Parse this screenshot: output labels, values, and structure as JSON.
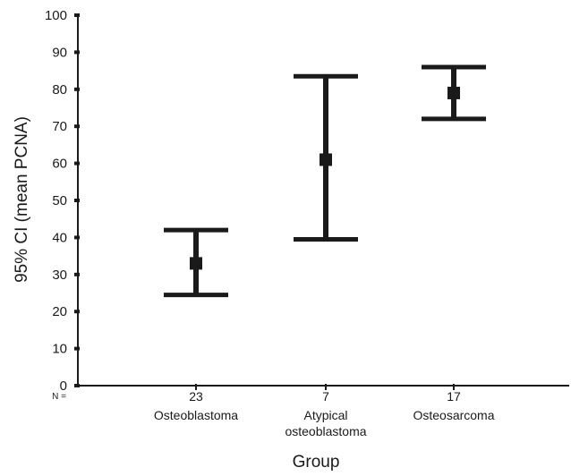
{
  "chart_data": {
    "type": "errorbar",
    "xlabel": "Group",
    "ylabel": "95% CI (mean PCNA)",
    "ylim": [
      0,
      100
    ],
    "yticks": [
      0,
      10,
      20,
      30,
      40,
      50,
      60,
      70,
      80,
      90,
      100
    ],
    "n_prefix": "N =",
    "groups": [
      {
        "n": "23",
        "label_lines": [
          "Osteoblastoma"
        ],
        "mean": 33,
        "lower": 24.5,
        "upper": 42
      },
      {
        "n": "7",
        "label_lines": [
          "Atypical",
          "osteoblastoma"
        ],
        "mean": 61,
        "lower": 39.5,
        "upper": 83.5
      },
      {
        "n": "17",
        "label_lines": [
          "Osteosarcoma"
        ],
        "mean": 79,
        "lower": 72,
        "upper": 86
      }
    ],
    "colors": {
      "ink": "#1a1a1a"
    },
    "grid": false,
    "legend": "none"
  }
}
